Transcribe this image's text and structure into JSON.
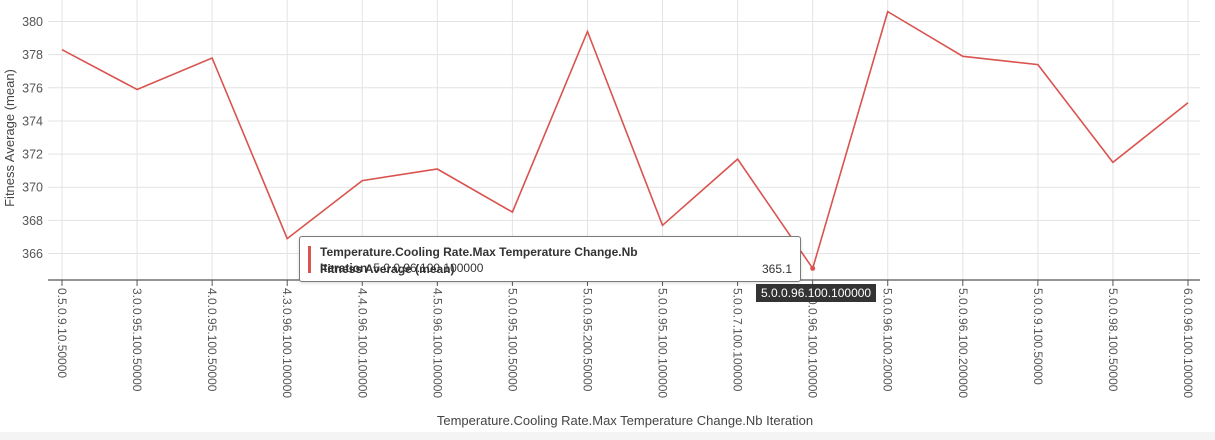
{
  "chart_data": {
    "type": "line",
    "xlabel": "Temperature.Cooling Rate.Max Temperature Change.Nb Iteration",
    "ylabel": "Fitness Average (mean)",
    "ylim": [
      364.4,
      381.3
    ],
    "y_ticks": [
      "366",
      "368",
      "370",
      "372",
      "374",
      "376",
      "378",
      "380"
    ],
    "categories": [
      "0.5.0.9.10.50000",
      "3.0.0.95.100.50000",
      "4.0.0.95.100.50000",
      "4.3.0.96.100.100000",
      "4.4.0.96.100.100000",
      "4.5.0.96.100.100000",
      "5.0.0.95.100.50000",
      "5.0.0.95.200.50000",
      "5.0.0.95.100.100000",
      "5.0.0.7.100.100000",
      "5.0.0.96.100.100000",
      "5.0.0.96.100.20000",
      "5.0.0.96.100.200000",
      "5.0.0.9.100.50000",
      "5.0.0.98.100.50000",
      "6.0.0.96.100.100000"
    ],
    "series": [
      {
        "name": "Fitness Average (mean)",
        "color": "#d9534f",
        "values": [
          378.3,
          375.9,
          377.8,
          366.9,
          370.4,
          371.1,
          368.5,
          379.4,
          367.7,
          371.7,
          365.1,
          380.6,
          377.9,
          377.4,
          371.5,
          375.1
        ]
      }
    ],
    "grid": true
  },
  "tooltip": {
    "category_name": "Temperature.Cooling Rate.Max Temperature Change.Nb Iteration",
    "category_value": "5.0.0.96.100.100000",
    "series_name": "Fitness Average (mean)",
    "series_value": "365.1"
  },
  "x_hover_label": "5.0.0.96.100.100000"
}
